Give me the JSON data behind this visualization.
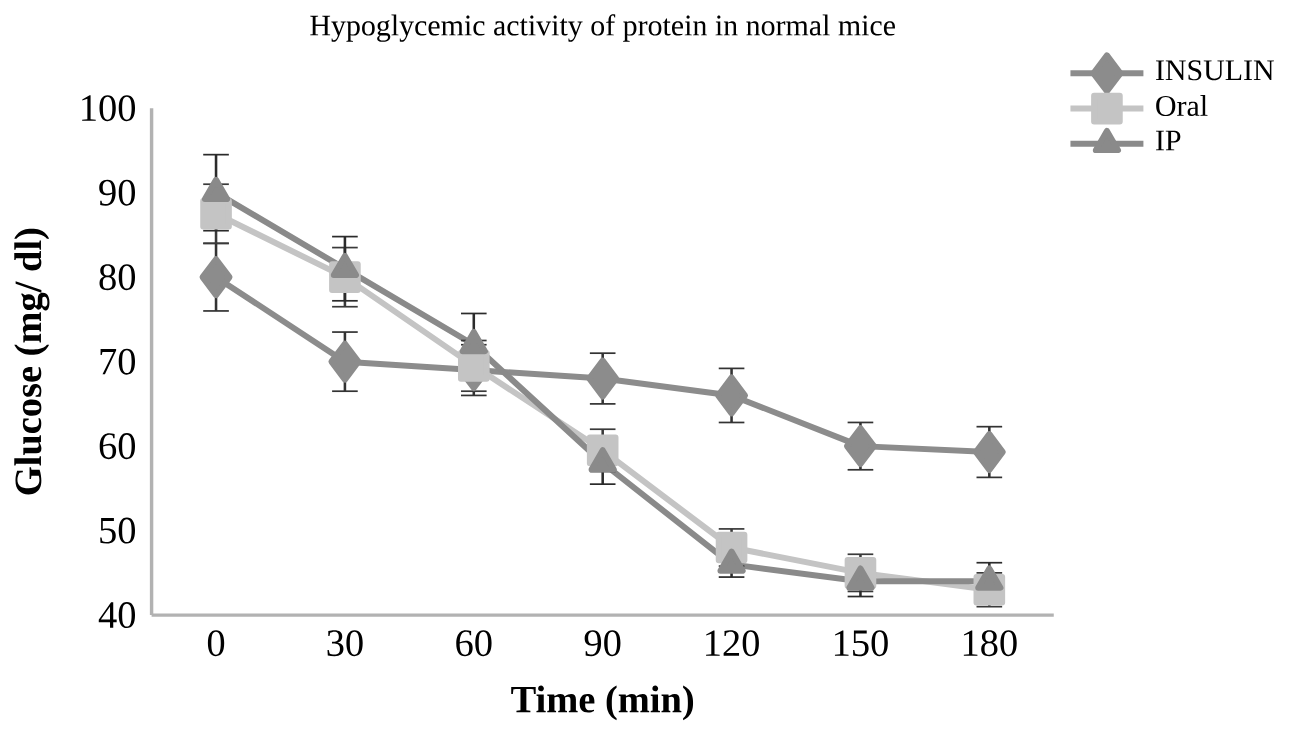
{
  "chart_data": {
    "type": "line",
    "title": "Hypoglycemic activity of protein in normal mice",
    "xlabel": "Time (min)",
    "ylabel": "Glucose (mg/ dl)",
    "categories": [
      "0",
      "30",
      "60",
      "90",
      "120",
      "150",
      "180"
    ],
    "series": [
      {
        "name": "INSULIN",
        "color": "#8c8c8c",
        "marker": "diamond",
        "values": [
          80,
          70,
          69,
          68,
          66,
          60,
          59.3
        ],
        "errors": [
          4,
          3.5,
          3,
          3,
          3.2,
          2.8,
          3
        ]
      },
      {
        "name": "Oral",
        "color": "#c4c4c4",
        "marker": "square",
        "values": [
          87.5,
          80,
          69.5,
          59.5,
          48,
          45,
          43
        ],
        "errors": [
          3.5,
          3.5,
          3,
          2.5,
          2.2,
          2.2,
          2
        ]
      },
      {
        "name": "IP",
        "color": "#8a8a8a",
        "marker": "triangle",
        "values": [
          90,
          81,
          72,
          58,
          46,
          44,
          44
        ],
        "errors": [
          4.5,
          3.8,
          3.7,
          2.5,
          1.5,
          1.8,
          2.2
        ]
      }
    ],
    "ylim": [
      40,
      100
    ],
    "yticks": [
      40,
      50,
      60,
      70,
      80,
      90,
      100
    ],
    "grid": false,
    "legend": "top right"
  }
}
